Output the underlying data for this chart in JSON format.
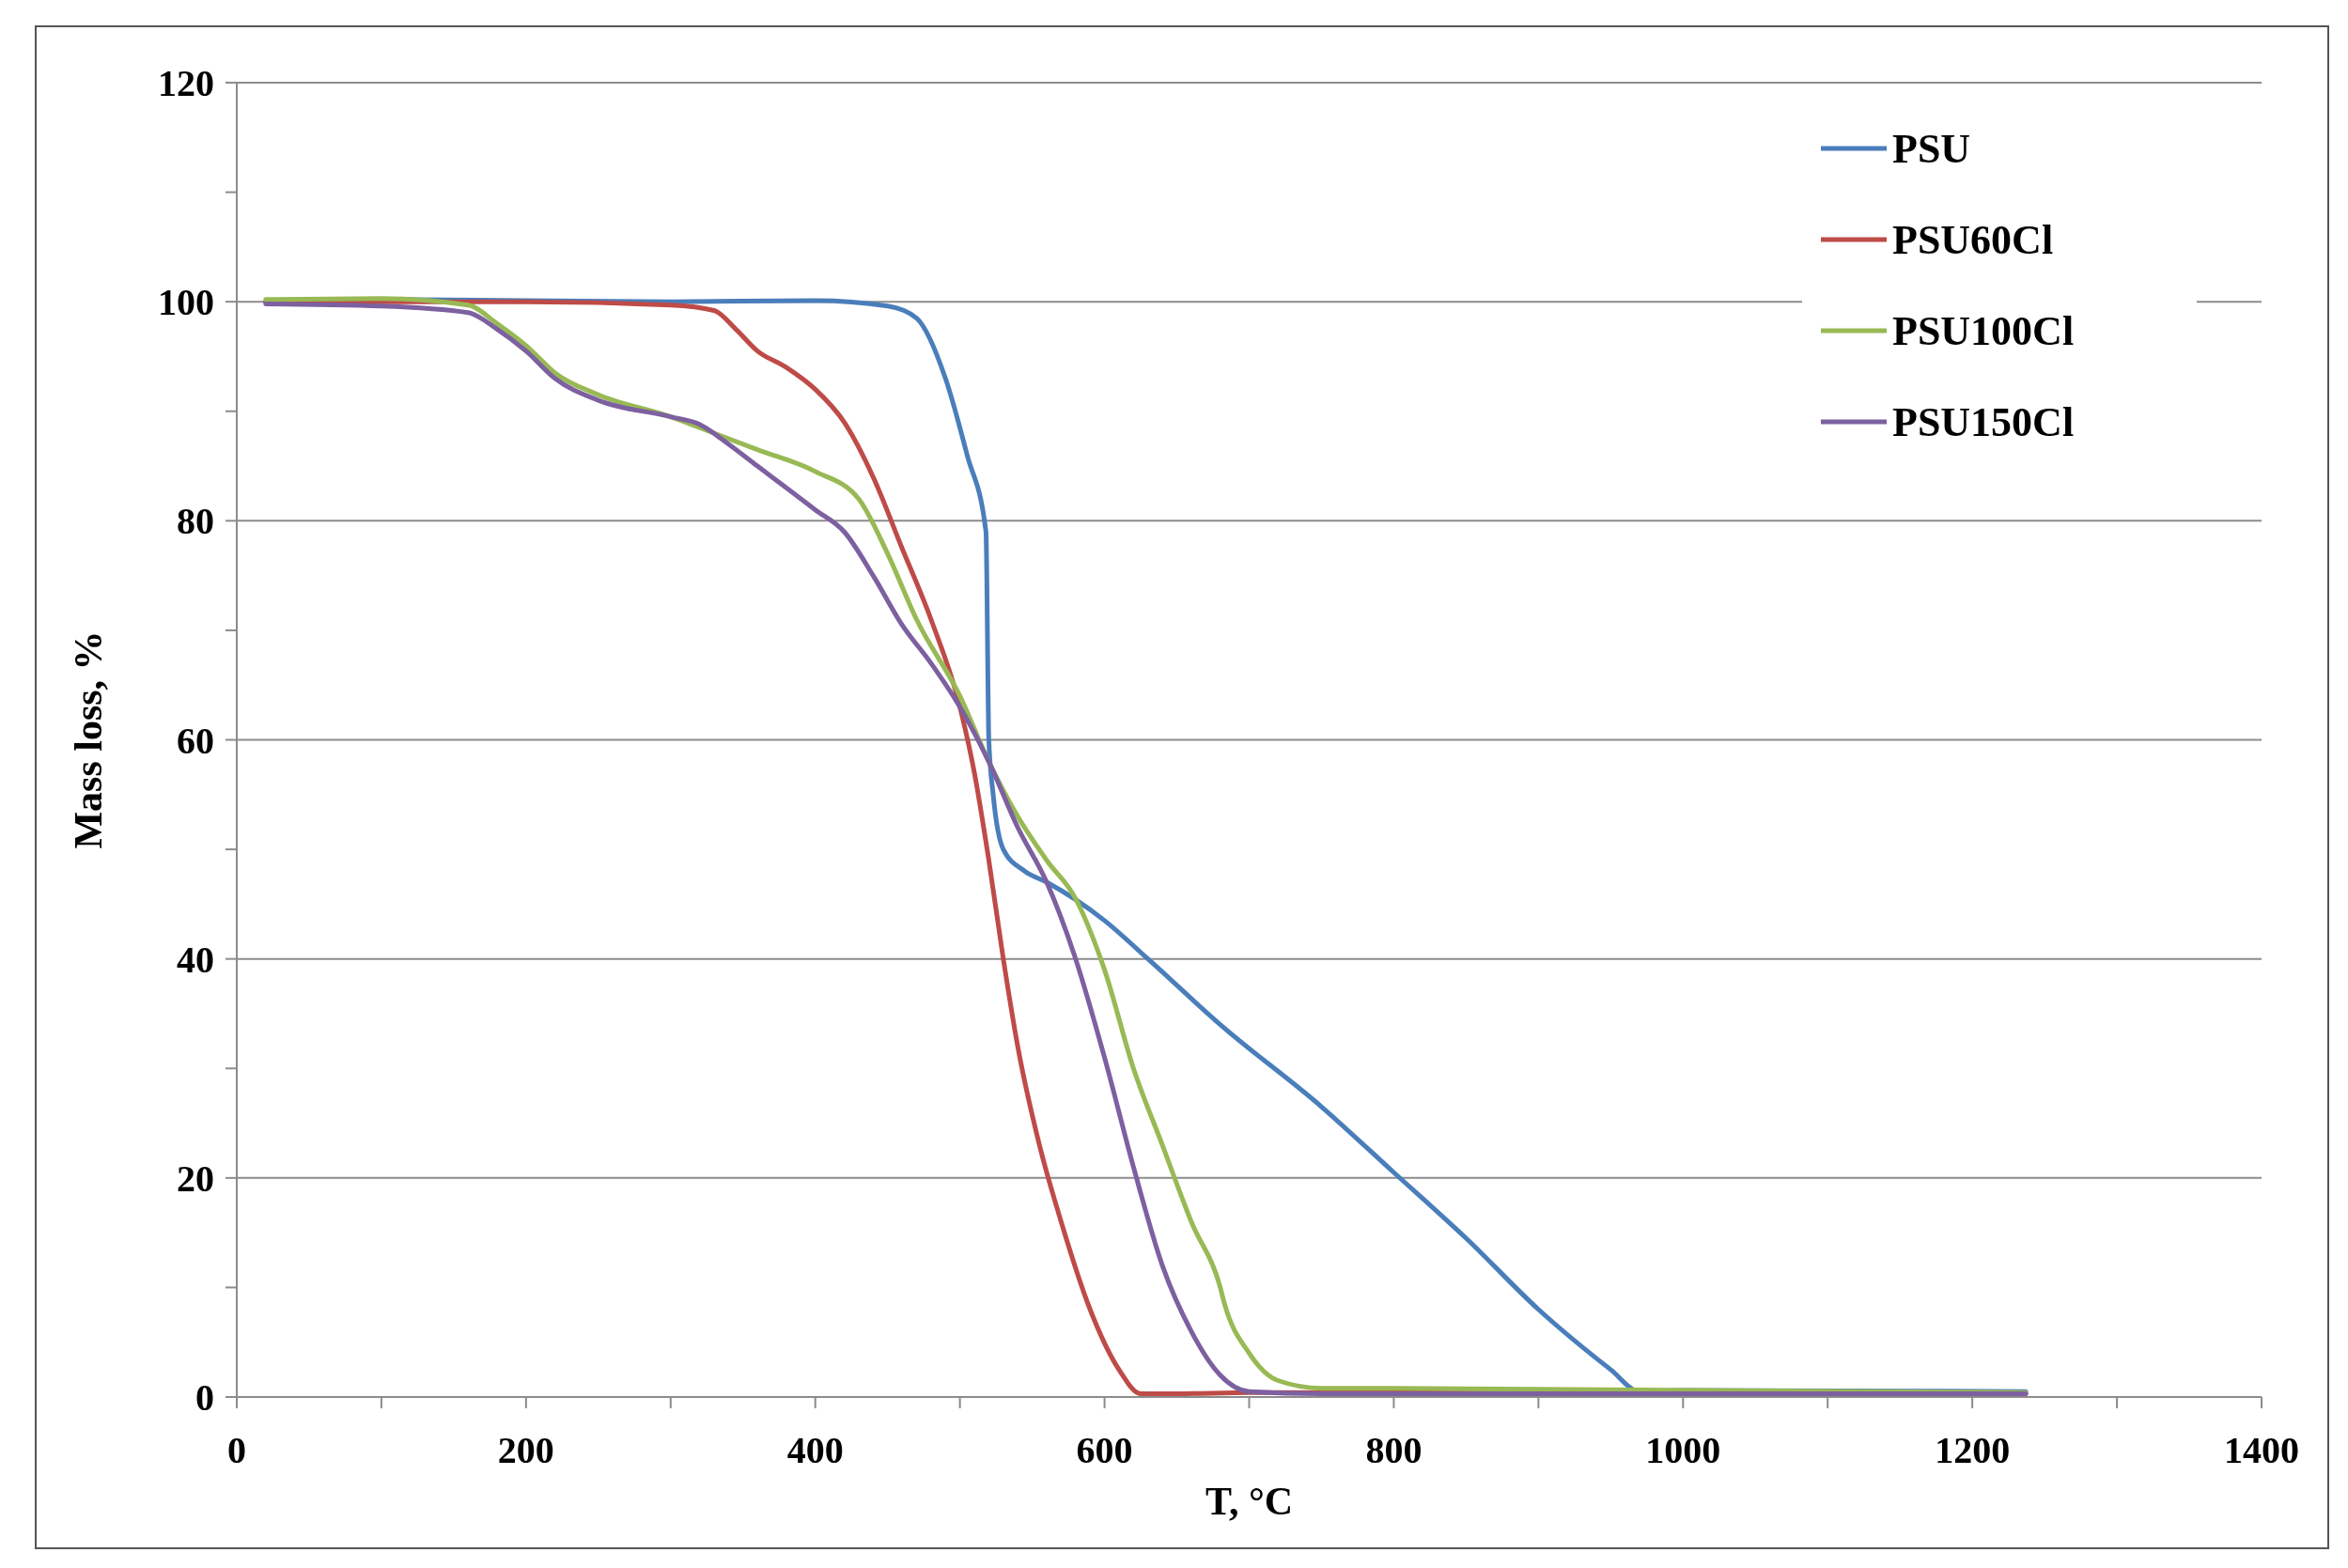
{
  "chart_data": {
    "type": "line",
    "xlabel": "T, °C",
    "ylabel": "Mass loss, %",
    "xlim": [
      0,
      1400
    ],
    "ylim": [
      0,
      120
    ],
    "xticks": [
      0,
      {
        "value": 100,
        "label": null
      },
      200,
      {
        "value": 300,
        "label": null
      },
      400,
      {
        "value": 500,
        "label": null
      },
      600,
      {
        "value": 700,
        "label": null
      },
      800,
      {
        "value": 900,
        "label": null
      },
      1000,
      {
        "value": 1100,
        "label": null
      },
      1200,
      {
        "value": 1300,
        "label": null
      },
      1400
    ],
    "yticks": [
      0,
      {
        "value": 10,
        "label": null
      },
      20,
      {
        "value": 30,
        "label": null
      },
      40,
      {
        "value": 50,
        "label": null
      },
      60,
      {
        "value": 70,
        "label": null
      },
      80,
      {
        "value": 90,
        "label": null
      },
      100,
      {
        "value": 110,
        "label": null
      },
      120
    ],
    "grid": "y",
    "legend": "top right",
    "marker": "none",
    "line_style": "solid",
    "series": [
      {
        "name": "PSU",
        "color": "#4a7ebb",
        "x": [
          20,
          100,
          300,
          400,
          450,
          470,
          490,
          505,
          518,
          520,
          523,
          530,
          545,
          560,
          600,
          630,
          680,
          750,
          800,
          850,
          900,
          950,
          970,
          1000,
          1237
        ],
        "values": [
          100,
          100.2,
          100,
          100.1,
          99.6,
          98.5,
          93,
          86,
          79,
          60,
          55,
          50,
          48,
          47,
          43.5,
          40,
          34,
          26.5,
          20.5,
          14.5,
          8,
          2.5,
          0.5,
          0.6,
          0.5
        ]
      },
      {
        "name": "PSU60Cl",
        "color": "#be4b48",
        "x": [
          20,
          200,
          300,
          330,
          345,
          360,
          380,
          400,
          420,
          440,
          460,
          480,
          500,
          510,
          520,
          530,
          540,
          555,
          570,
          590,
          610,
          625,
          650,
          700,
          1237
        ],
        "values": [
          100,
          100,
          99.7,
          99.2,
          97.5,
          95.5,
          94,
          92,
          89,
          84,
          77.5,
          71,
          63,
          57,
          49,
          40,
          32,
          23,
          16,
          8,
          2.5,
          0.3,
          0.3,
          0.4,
          0.3
        ]
      },
      {
        "name": "PSU100Cl",
        "color": "#98b954",
        "x": [
          20,
          100,
          160,
          180,
          200,
          220,
          250,
          300,
          330,
          360,
          400,
          430,
          450,
          470,
          500,
          520,
          540,
          560,
          580,
          600,
          620,
          640,
          660,
          680,
          683,
          700,
          720,
          750,
          800,
          1237
        ],
        "values": [
          100.2,
          100.3,
          99.7,
          98,
          96,
          93.5,
          91.5,
          89.5,
          88,
          86.5,
          84.5,
          82,
          77,
          71,
          64,
          58,
          53,
          49,
          45.5,
          39,
          30,
          23,
          16,
          10,
          8.5,
          4,
          1.5,
          0.8,
          0.8,
          0.4
        ]
      },
      {
        "name": "PSU150Cl",
        "color": "#7d60a0",
        "x": [
          20,
          100,
          160,
          180,
          200,
          220,
          250,
          300,
          320,
          340,
          360,
          380,
          400,
          420,
          440,
          460,
          480,
          500,
          520,
          540,
          560,
          580,
          600,
          620,
          640,
          660,
          680,
          700,
          750,
          1237
        ],
        "values": [
          99.8,
          99.6,
          99,
          97.5,
          95.5,
          93,
          91,
          89.5,
          88.8,
          87,
          85,
          83,
          81,
          79,
          75,
          70.5,
          67,
          63,
          58,
          52,
          47,
          40,
          31,
          21,
          12,
          6,
          2,
          0.5,
          0.3,
          0.3
        ]
      }
    ]
  }
}
